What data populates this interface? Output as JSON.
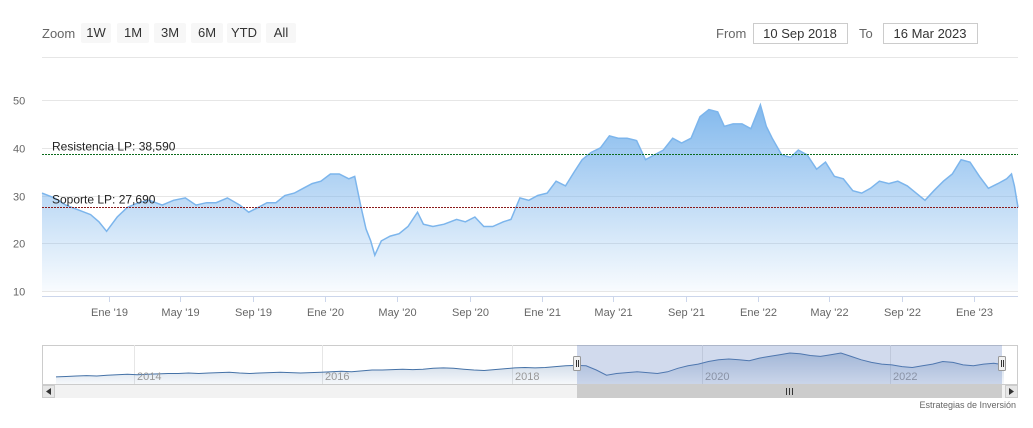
{
  "range_selector": {
    "zoom_label": "Zoom",
    "buttons": [
      "1W",
      "1M",
      "3M",
      "6M",
      "YTD",
      "All"
    ],
    "from_label": "From",
    "from_value": "10 Sep 2018",
    "to_label": "To",
    "to_value": "16 Mar 2023"
  },
  "credits": "Estrategias de Inversión",
  "colors": {
    "line": "#7cb5ec",
    "resistance": "#0b6b1c",
    "support": "#8b1a1a",
    "navigator_mask": "rgba(102,133,194,0.3)"
  },
  "chart_data": {
    "type": "area",
    "x_start": "2018-09-10",
    "x_end": "2023-03-16",
    "ylim": [
      10,
      50
    ],
    "y_ticks": [
      10,
      20,
      30,
      40,
      50
    ],
    "x_ticks": [
      {
        "date": "2019-01-01",
        "label": "Ene '19"
      },
      {
        "date": "2019-05-01",
        "label": "May '19"
      },
      {
        "date": "2019-09-01",
        "label": "Sep '19"
      },
      {
        "date": "2020-01-01",
        "label": "Ene '20"
      },
      {
        "date": "2020-05-01",
        "label": "May '20"
      },
      {
        "date": "2020-09-01",
        "label": "Sep '20"
      },
      {
        "date": "2021-01-01",
        "label": "Ene '21"
      },
      {
        "date": "2021-05-01",
        "label": "May '21"
      },
      {
        "date": "2021-09-01",
        "label": "Sep '21"
      },
      {
        "date": "2022-01-01",
        "label": "Ene '22"
      },
      {
        "date": "2022-05-01",
        "label": "May '22"
      },
      {
        "date": "2022-09-01",
        "label": "Sep '22"
      },
      {
        "date": "2023-01-01",
        "label": "Ene '23"
      }
    ],
    "plot_lines": [
      {
        "value": 38.59,
        "label": "Resistencia LP: 38,590",
        "color": "#0b6b1c"
      },
      {
        "value": 27.69,
        "label": "Soporte LP: 27,690",
        "color": "#8b1a1a"
      }
    ],
    "series": [
      {
        "x": [
          "2018-09-10",
          "2018-10-01",
          "2018-10-20",
          "2018-11-10",
          "2018-12-01",
          "2018-12-15",
          "2018-12-28",
          "2019-01-15",
          "2019-02-01",
          "2019-02-20",
          "2019-03-10",
          "2019-04-01",
          "2019-04-20",
          "2019-05-10",
          "2019-05-28",
          "2019-06-15",
          "2019-07-01",
          "2019-07-20",
          "2019-08-10",
          "2019-08-25",
          "2019-09-10",
          "2019-09-25",
          "2019-10-10",
          "2019-10-25",
          "2019-11-10",
          "2019-11-25",
          "2019-12-10",
          "2019-12-25",
          "2020-01-10",
          "2020-01-25",
          "2020-02-10",
          "2020-02-20",
          "2020-03-01",
          "2020-03-10",
          "2020-03-18",
          "2020-03-25",
          "2020-04-05",
          "2020-04-20",
          "2020-05-05",
          "2020-05-20",
          "2020-06-05",
          "2020-06-15",
          "2020-07-01",
          "2020-07-20",
          "2020-08-10",
          "2020-08-25",
          "2020-09-10",
          "2020-09-25",
          "2020-10-10",
          "2020-10-28",
          "2020-11-10",
          "2020-11-25",
          "2020-12-10",
          "2020-12-25",
          "2021-01-10",
          "2021-01-25",
          "2021-02-10",
          "2021-02-25",
          "2021-03-10",
          "2021-03-25",
          "2021-04-10",
          "2021-04-25",
          "2021-05-10",
          "2021-05-25",
          "2021-06-10",
          "2021-06-25",
          "2021-07-10",
          "2021-07-25",
          "2021-08-10",
          "2021-08-25",
          "2021-09-10",
          "2021-09-25",
          "2021-10-10",
          "2021-10-25",
          "2021-11-05",
          "2021-11-20",
          "2021-12-05",
          "2021-12-20",
          "2022-01-05",
          "2022-01-15",
          "2022-01-25",
          "2022-02-10",
          "2022-02-25",
          "2022-03-10",
          "2022-03-25",
          "2022-04-10",
          "2022-04-25",
          "2022-05-10",
          "2022-05-25",
          "2022-06-10",
          "2022-06-25",
          "2022-07-10",
          "2022-07-25",
          "2022-08-10",
          "2022-08-25",
          "2022-09-10",
          "2022-09-25",
          "2022-10-10",
          "2022-10-25",
          "2022-11-10",
          "2022-11-25",
          "2022-12-10",
          "2022-12-25",
          "2023-01-10",
          "2023-01-25",
          "2023-02-10",
          "2023-02-25",
          "2023-03-05",
          "2023-03-10",
          "2023-03-16"
        ],
        "values": [
          30.5,
          29.5,
          28.0,
          27.0,
          26.0,
          24.5,
          22.5,
          25.5,
          27.5,
          28.5,
          29.0,
          28.0,
          29.0,
          29.5,
          28.0,
          28.5,
          28.5,
          29.5,
          28.0,
          26.5,
          27.5,
          28.5,
          28.5,
          30.0,
          30.5,
          31.5,
          32.5,
          33.0,
          34.5,
          34.5,
          33.5,
          34.0,
          28.0,
          23.0,
          20.5,
          17.5,
          20.5,
          21.5,
          22.0,
          23.5,
          26.5,
          24.0,
          23.5,
          24.0,
          25.0,
          24.5,
          25.5,
          23.5,
          23.5,
          24.5,
          25.0,
          29.5,
          29.0,
          30.0,
          30.5,
          33.0,
          32.0,
          35.0,
          37.5,
          39.0,
          40.0,
          42.5,
          42.0,
          42.0,
          41.5,
          37.5,
          38.5,
          39.5,
          42.0,
          41.0,
          42.0,
          46.5,
          48.0,
          47.5,
          44.5,
          45.0,
          45.0,
          44.0,
          49.0,
          44.5,
          42.0,
          38.5,
          38.0,
          39.5,
          38.5,
          35.5,
          37.0,
          34.0,
          33.5,
          31.0,
          30.5,
          31.5,
          33.0,
          32.5,
          33.0,
          32.0,
          30.5,
          29.0,
          31.0,
          33.0,
          34.5,
          37.5,
          37.0,
          34.0,
          31.5,
          32.5,
          33.5,
          34.5,
          32.0,
          27.5
        ]
      }
    ],
    "navigator": {
      "x_labels": [
        "2014",
        "2016",
        "2018",
        "2020",
        "2022"
      ],
      "values": [
        20,
        20.5,
        21,
        21.5,
        21,
        22,
        22.5,
        23,
        22.5,
        23,
        23.5,
        24,
        24,
        24.5,
        24,
        24.5,
        25,
        25.5,
        24.5,
        24,
        24.5,
        25,
        25.5,
        25,
        24.5,
        25,
        25.5,
        26,
        26.5,
        26,
        27,
        28,
        28,
        28.5,
        29,
        28.5,
        29,
        30,
        30.5,
        30,
        29,
        28,
        27.5,
        28.5,
        29.5,
        30.5,
        31,
        30.5,
        31,
        32,
        33,
        33.5,
        33,
        28,
        22,
        24,
        25,
        26,
        25,
        24,
        26,
        30,
        33,
        35,
        38,
        40,
        41,
        40,
        39,
        42,
        44,
        46,
        48,
        47,
        45,
        44,
        46,
        48,
        44,
        40,
        37,
        35,
        34,
        32,
        31,
        33,
        35,
        38,
        37,
        34,
        33,
        35,
        36,
        34
      ]
    }
  }
}
